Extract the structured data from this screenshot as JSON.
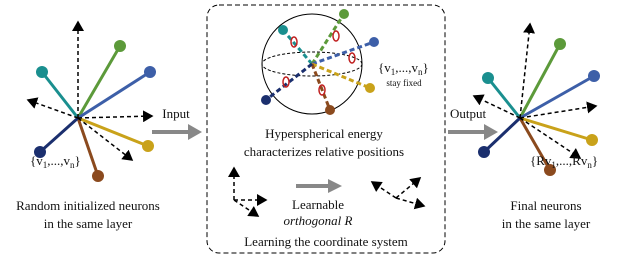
{
  "left": {
    "set": [
      "{v",
      "1",
      ",...,v",
      "n",
      "}"
    ],
    "caption": [
      "Random initialized neurons",
      "in the same layer"
    ]
  },
  "input_label": "Input",
  "center": {
    "set": [
      "{v",
      "1",
      ",...,v",
      "n",
      "}"
    ],
    "fixed": "stay fixed",
    "energy": [
      "Hyperspherical energy",
      "characterizes relative positions"
    ],
    "learnable": [
      "Learnable",
      "orthogonal R"
    ],
    "footer": "Learning the coordinate system"
  },
  "output_label": "Output",
  "right": {
    "set": [
      "{Rv",
      "1",
      ",...,Rv",
      "n",
      "}"
    ],
    "caption": [
      "Final neurons",
      "in the same layer"
    ]
  }
}
